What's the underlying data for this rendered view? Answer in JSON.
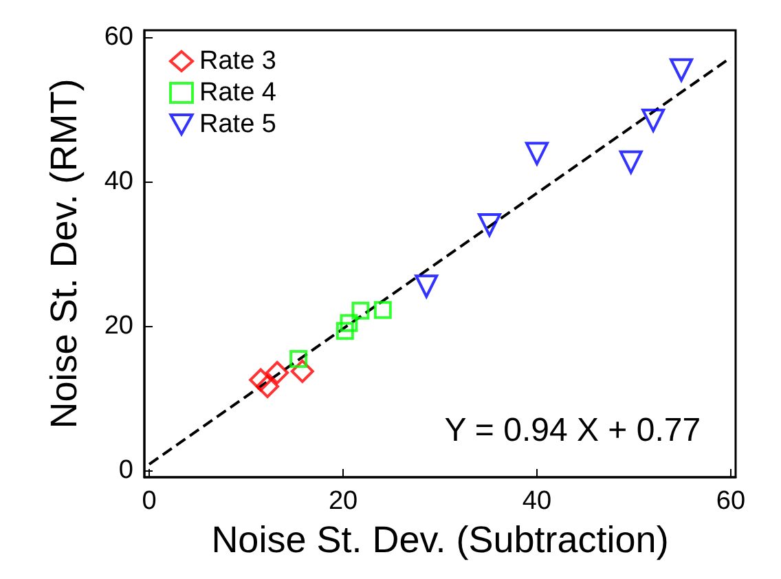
{
  "chart_data": {
    "type": "scatter",
    "xlabel": "Noise St. Dev. (Subtraction)",
    "ylabel": "Noise St. Dev. (RMT)",
    "xlim": [
      -0.5,
      60.5
    ],
    "ylim": [
      -1,
      61
    ],
    "xticks": [
      0,
      20,
      40,
      60
    ],
    "yticks": [
      0,
      20,
      40,
      60
    ],
    "legend": "top left",
    "grid": false,
    "annotations": [
      "Y = 0.94 X + 0.77"
    ],
    "series": [
      {
        "name": "Rate 3",
        "color": "#ff0000",
        "marker": "diamond",
        "x": [
          11.5,
          12.2,
          13.2,
          15.8
        ],
        "values": [
          12.5,
          11.6,
          13.5,
          13.7
        ]
      },
      {
        "name": "Rate 4",
        "color": "#00ff00",
        "marker": "square",
        "x": [
          15.4,
          20.2,
          20.6,
          21.8,
          24.1
        ],
        "values": [
          15.4,
          19.3,
          20.4,
          22.1,
          22.2
        ]
      },
      {
        "name": "Rate 5",
        "color": "#0000ff",
        "marker": "triangle",
        "x": [
          28.6,
          35.1,
          40.0,
          49.7,
          52.0,
          54.9
        ],
        "values": [
          25.5,
          34.0,
          43.9,
          42.7,
          48.5,
          55.5
        ]
      },
      {
        "type": "line",
        "color": "#000000",
        "line_style": "dashed",
        "marker": "none",
        "x": [
          0,
          60
        ],
        "values": [
          0.8,
          57.2
        ]
      }
    ]
  }
}
